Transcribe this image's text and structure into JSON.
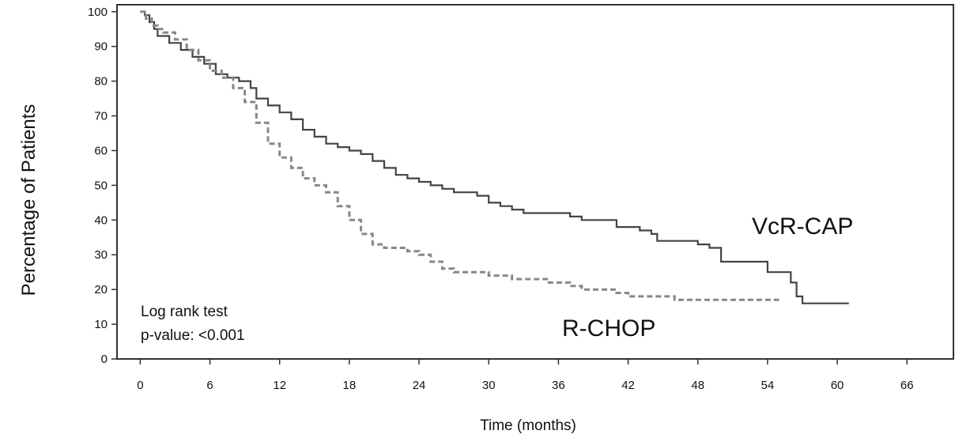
{
  "chart_data": {
    "type": "line",
    "xlabel": "Time (months)",
    "ylabel": "Percentage of Patients",
    "xticks": [
      0,
      6,
      12,
      18,
      24,
      30,
      36,
      42,
      48,
      54,
      60,
      66
    ],
    "yticks": [
      0,
      10,
      20,
      30,
      40,
      50,
      60,
      70,
      80,
      90,
      100
    ],
    "xlim": [
      -2,
      70
    ],
    "ylim": [
      0,
      102
    ],
    "grid": false,
    "annotations": {
      "test_name": "Log rank test",
      "p_value": "p-value: <0.001"
    },
    "series": [
      {
        "name": "VcR-CAP",
        "style": "solid",
        "color": "#444444",
        "points": [
          [
            0,
            100
          ],
          [
            0.4,
            99
          ],
          [
            0.8,
            97
          ],
          [
            1.2,
            95
          ],
          [
            1.5,
            93
          ],
          [
            2.5,
            91
          ],
          [
            3.5,
            89
          ],
          [
            4.5,
            87
          ],
          [
            5.5,
            85
          ],
          [
            6.5,
            82
          ],
          [
            7.5,
            81
          ],
          [
            8.5,
            80
          ],
          [
            9.5,
            78
          ],
          [
            10,
            75
          ],
          [
            11,
            73
          ],
          [
            12,
            71
          ],
          [
            13,
            69
          ],
          [
            14,
            66
          ],
          [
            15,
            64
          ],
          [
            16,
            62
          ],
          [
            17,
            61
          ],
          [
            18,
            60
          ],
          [
            19,
            59
          ],
          [
            20,
            57
          ],
          [
            21,
            55
          ],
          [
            22,
            53
          ],
          [
            23,
            52
          ],
          [
            24,
            51
          ],
          [
            25,
            50
          ],
          [
            26,
            49
          ],
          [
            27,
            48
          ],
          [
            28,
            48
          ],
          [
            29,
            47
          ],
          [
            30,
            45
          ],
          [
            31,
            44
          ],
          [
            32,
            43
          ],
          [
            33,
            42
          ],
          [
            34,
            42
          ],
          [
            35,
            42
          ],
          [
            36,
            42
          ],
          [
            37,
            41
          ],
          [
            38,
            40
          ],
          [
            39,
            40
          ],
          [
            40,
            40
          ],
          [
            41,
            38
          ],
          [
            42,
            38
          ],
          [
            43,
            37
          ],
          [
            44,
            36
          ],
          [
            44.5,
            34
          ],
          [
            45,
            34
          ],
          [
            46,
            34
          ],
          [
            47,
            34
          ],
          [
            48,
            33
          ],
          [
            49,
            32
          ],
          [
            50,
            28
          ],
          [
            51,
            28
          ],
          [
            52,
            28
          ],
          [
            53,
            28
          ],
          [
            54,
            25
          ],
          [
            55,
            25
          ],
          [
            56,
            22
          ],
          [
            56.5,
            18
          ],
          [
            57,
            16
          ],
          [
            58,
            16
          ],
          [
            59,
            16
          ],
          [
            60,
            16
          ],
          [
            61,
            16
          ]
        ]
      },
      {
        "name": "R-CHOP",
        "style": "dashed",
        "color": "#888888",
        "points": [
          [
            0,
            100
          ],
          [
            0.5,
            98
          ],
          [
            1,
            96
          ],
          [
            1.5,
            95
          ],
          [
            2,
            94
          ],
          [
            3,
            92
          ],
          [
            4,
            89
          ],
          [
            5,
            86
          ],
          [
            6,
            83
          ],
          [
            7,
            81
          ],
          [
            8,
            78
          ],
          [
            9,
            74
          ],
          [
            10,
            68
          ],
          [
            11,
            62
          ],
          [
            12,
            58
          ],
          [
            13,
            55
          ],
          [
            14,
            52
          ],
          [
            15,
            50
          ],
          [
            16,
            48
          ],
          [
            17,
            44
          ],
          [
            18,
            40
          ],
          [
            19,
            36
          ],
          [
            20,
            33
          ],
          [
            21,
            32
          ],
          [
            22,
            32
          ],
          [
            23,
            31
          ],
          [
            24,
            30
          ],
          [
            25,
            28
          ],
          [
            26,
            26
          ],
          [
            27,
            25
          ],
          [
            28,
            25
          ],
          [
            29,
            25
          ],
          [
            30,
            24
          ],
          [
            31,
            24
          ],
          [
            32,
            23
          ],
          [
            33,
            23
          ],
          [
            34,
            23
          ],
          [
            35,
            22
          ],
          [
            36,
            22
          ],
          [
            37,
            21
          ],
          [
            38,
            20
          ],
          [
            39,
            20
          ],
          [
            40,
            20
          ],
          [
            41,
            19
          ],
          [
            42,
            18
          ],
          [
            43,
            18
          ],
          [
            44,
            18
          ],
          [
            45,
            18
          ],
          [
            46,
            17
          ],
          [
            47,
            17
          ],
          [
            48,
            17
          ],
          [
            49,
            17
          ],
          [
            50,
            17
          ],
          [
            51,
            17
          ],
          [
            52,
            17
          ],
          [
            53,
            17
          ],
          [
            54,
            17
          ],
          [
            55,
            17
          ]
        ]
      }
    ]
  }
}
